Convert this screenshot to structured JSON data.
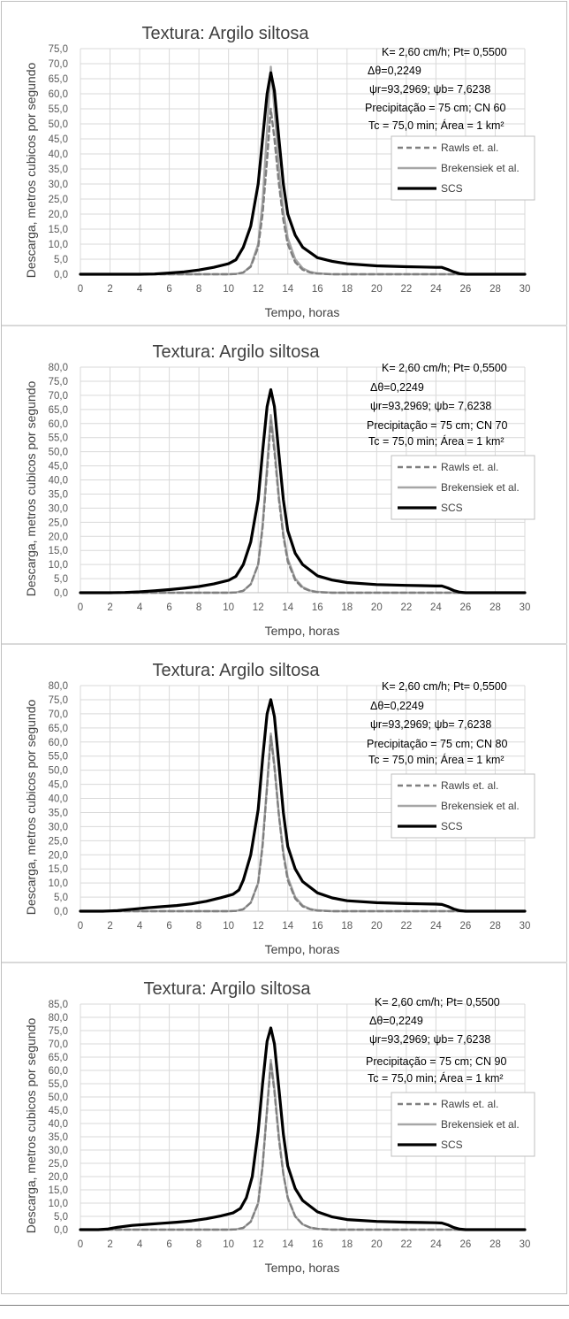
{
  "chart_data": [
    {
      "type": "line",
      "title": "Textura: Argilo siltosa",
      "xlabel": "Tempo, horas",
      "ylabel": "Descarga, metros cubicos por segundo",
      "xlim": [
        0,
        30
      ],
      "ylim": [
        0,
        75
      ],
      "x_ticks": [
        "0",
        "2",
        "4",
        "6",
        "8",
        "10",
        "12",
        "14",
        "16",
        "18",
        "20",
        "22",
        "24",
        "26",
        "28",
        "30"
      ],
      "y_ticks": [
        "0,0",
        "5,0",
        "10,0",
        "15,0",
        "20,0",
        "25,0",
        "30,0",
        "35,0",
        "40,0",
        "45,0",
        "50,0",
        "55,0",
        "60,0",
        "65,0",
        "70,0",
        "75,0"
      ],
      "grid": true,
      "legend_position": "right",
      "annotations": [
        "K= 2,60 cm/h; Pt= 0,5500",
        "Δθ=0,2249",
        "ψr=93,2969; ψb= 7,6238",
        "Precipitação = 75 cm; CN 60",
        "Tc = 75,0 min; Área = 1 km²"
      ],
      "series": [
        {
          "name": "Rawls et. al.",
          "color": "#7f7f7f",
          "dash": "dashed",
          "x": [
            0,
            8,
            10,
            10.5,
            11,
            11.5,
            12,
            12.3,
            12.6,
            12.85,
            13.1,
            13.4,
            13.7,
            14,
            14.5,
            15,
            15.5,
            16,
            17,
            20,
            24,
            26,
            30
          ],
          "values": [
            0,
            0,
            0,
            0.1,
            0.6,
            2.5,
            9,
            20,
            38,
            55,
            45,
            30,
            18,
            10,
            4,
            1.5,
            0.6,
            0.2,
            0,
            0,
            0,
            0,
            0
          ]
        },
        {
          "name": "Brekensiek et al.",
          "color": "#a6a6a6",
          "dash": "solid",
          "x": [
            0,
            8,
            10,
            10.5,
            11,
            11.5,
            12,
            12.3,
            12.6,
            12.85,
            13.1,
            13.4,
            13.7,
            14,
            14.5,
            15,
            15.5,
            16,
            17,
            20,
            24,
            26,
            30
          ],
          "values": [
            0,
            0,
            0,
            0.1,
            0.6,
            2.7,
            10,
            24,
            48,
            69,
            55,
            35,
            21,
            12,
            5,
            2,
            0.8,
            0.3,
            0,
            0,
            0,
            0,
            0
          ]
        },
        {
          "name": "SCS",
          "color": "#000000",
          "dash": "solid",
          "x": [
            0,
            2,
            4,
            5,
            6,
            7,
            8,
            9,
            10,
            10.5,
            11,
            11.5,
            12,
            12.3,
            12.6,
            12.85,
            13.1,
            13.4,
            13.7,
            14,
            14.5,
            15,
            16,
            17,
            18,
            20,
            22,
            23,
            24,
            24.4,
            24.8,
            25.2,
            25.6,
            26,
            27,
            30
          ],
          "values": [
            0,
            0,
            0,
            0.1,
            0.4,
            0.8,
            1.4,
            2.3,
            3.5,
            4.8,
            9,
            16,
            30,
            45,
            60,
            67,
            61,
            45,
            30,
            20,
            13,
            9,
            5.5,
            4.3,
            3.5,
            2.8,
            2.5,
            2.4,
            2.3,
            2.3,
            1.6,
            0.8,
            0.2,
            0,
            0,
            0
          ]
        }
      ]
    },
    {
      "type": "line",
      "title": "Textura: Argilo siltosa",
      "xlabel": "Tempo, horas",
      "ylabel": "Descarga, metros cubicos por segundo",
      "xlim": [
        0,
        30
      ],
      "ylim": [
        0,
        80
      ],
      "x_ticks": [
        "0",
        "2",
        "4",
        "6",
        "8",
        "10",
        "12",
        "14",
        "16",
        "18",
        "20",
        "22",
        "24",
        "26",
        "28",
        "30"
      ],
      "y_ticks": [
        "0,0",
        "5,0",
        "10,0",
        "15,0",
        "20,0",
        "25,0",
        "30,0",
        "35,0",
        "40,0",
        "45,0",
        "50,0",
        "55,0",
        "60,0",
        "65,0",
        "70,0",
        "75,0",
        "80,0"
      ],
      "grid": true,
      "legend_position": "right",
      "annotations": [
        "K= 2,60 cm/h; Pt= 0,5500",
        "Δθ=0,2249",
        "ψr=93,2969;  ψb= 7,6238",
        "Precipitação = 75 cm; CN 70",
        "Tc = 75,0 min; Área = 1 km²"
      ],
      "series": [
        {
          "name": "Rawls et. al.",
          "color": "#7f7f7f",
          "dash": "dashed",
          "x": [
            0,
            8,
            10,
            10.5,
            11,
            11.5,
            12,
            12.3,
            12.6,
            12.85,
            13.1,
            13.4,
            13.7,
            14,
            14.5,
            15,
            15.5,
            16,
            17,
            20,
            24,
            26,
            30
          ],
          "values": [
            0,
            0,
            0,
            0.1,
            0.7,
            3,
            10,
            23,
            43,
            61,
            50,
            33,
            20,
            11,
            4.5,
            1.7,
            0.7,
            0.2,
            0,
            0,
            0,
            0,
            0
          ]
        },
        {
          "name": "Brekensiek et al.",
          "color": "#a6a6a6",
          "dash": "solid",
          "x": [
            0,
            8,
            10,
            10.5,
            11,
            11.5,
            12,
            12.3,
            12.6,
            12.85,
            13.1,
            13.4,
            13.7,
            14,
            14.5,
            15,
            15.5,
            16,
            17,
            20,
            24,
            26,
            30
          ],
          "values": [
            0,
            0,
            0,
            0.1,
            0.7,
            3,
            10,
            24,
            45,
            63,
            52,
            34,
            21,
            12,
            5,
            2,
            0.8,
            0.3,
            0,
            0,
            0,
            0,
            0
          ]
        },
        {
          "name": "SCS",
          "color": "#000000",
          "dash": "solid",
          "x": [
            0,
            2,
            3,
            4,
            5,
            6,
            7,
            8,
            9,
            10,
            10.5,
            11,
            11.5,
            12,
            12.3,
            12.6,
            12.85,
            13.1,
            13.4,
            13.7,
            14,
            14.5,
            15,
            16,
            17,
            18,
            20,
            22,
            23,
            24,
            24.4,
            24.8,
            25.2,
            25.6,
            26,
            27,
            30
          ],
          "values": [
            0,
            0,
            0.1,
            0.3,
            0.7,
            1.1,
            1.6,
            2.2,
            3.1,
            4.4,
            5.8,
            10,
            18,
            33,
            50,
            66,
            72,
            66,
            49,
            33,
            22,
            14,
            10,
            6,
            4.5,
            3.6,
            2.9,
            2.6,
            2.5,
            2.4,
            2.4,
            1.7,
            0.8,
            0.2,
            0,
            0,
            0
          ]
        }
      ]
    },
    {
      "type": "line",
      "title": "Textura: Argilo siltosa",
      "xlabel": "Tempo, horas",
      "ylabel": "Descarga, metros cubicos por segundo",
      "xlim": [
        0,
        30
      ],
      "ylim": [
        0,
        80
      ],
      "x_ticks": [
        "0",
        "2",
        "4",
        "6",
        "8",
        "10",
        "12",
        "14",
        "16",
        "18",
        "20",
        "22",
        "24",
        "26",
        "28",
        "30"
      ],
      "y_ticks": [
        "0,0",
        "5,0",
        "10,0",
        "15,0",
        "20,0",
        "25,0",
        "30,0",
        "35,0",
        "40,0",
        "45,0",
        "50,0",
        "55,0",
        "60,0",
        "65,0",
        "70,0",
        "75,0",
        "80,0"
      ],
      "grid": true,
      "legend_position": "right",
      "annotations": [
        "K= 2,60 cm/h; Pt= 0,5500",
        "Δθ=0,2249",
        "ψr=93,2969;  ψb= 7,6238",
        "Precipitação = 75 cm; CN 80",
        "Tc = 75,0 min; Área = 1 km²"
      ],
      "series": [
        {
          "name": "Rawls et. al.",
          "color": "#7f7f7f",
          "dash": "dashed",
          "x": [
            0,
            8,
            10,
            10.5,
            11,
            11.5,
            12,
            12.3,
            12.6,
            12.85,
            13.1,
            13.4,
            13.7,
            14,
            14.5,
            15,
            15.5,
            16,
            17,
            20,
            24,
            26,
            30
          ],
          "values": [
            0,
            0,
            0,
            0.1,
            0.7,
            3,
            10,
            23,
            44,
            62,
            51,
            34,
            20,
            11,
            4.5,
            1.7,
            0.7,
            0.2,
            0,
            0,
            0,
            0,
            0
          ]
        },
        {
          "name": "Brekensiek et al.",
          "color": "#a6a6a6",
          "dash": "solid",
          "x": [
            0,
            8,
            10,
            10.5,
            11,
            11.5,
            12,
            12.3,
            12.6,
            12.85,
            13.1,
            13.4,
            13.7,
            14,
            14.5,
            15,
            15.5,
            16,
            17,
            20,
            24,
            26,
            30
          ],
          "values": [
            0,
            0,
            0,
            0.1,
            0.7,
            3,
            10,
            24,
            45,
            63,
            52,
            34,
            21,
            12,
            5,
            2,
            0.8,
            0.3,
            0,
            0,
            0,
            0,
            0
          ]
        },
        {
          "name": "SCS",
          "color": "#000000",
          "dash": "solid",
          "x": [
            0,
            1.5,
            2.5,
            3.5,
            4.5,
            5.5,
            6.5,
            7.5,
            8.5,
            9.5,
            10.3,
            10.7,
            11,
            11.5,
            12,
            12.3,
            12.6,
            12.85,
            13.1,
            13.4,
            13.7,
            14,
            14.5,
            15,
            16,
            17,
            18,
            20,
            22,
            23,
            24,
            24.4,
            24.8,
            25.2,
            25.6,
            26,
            27,
            30
          ],
          "values": [
            0,
            0,
            0.2,
            0.7,
            1.2,
            1.6,
            2,
            2.6,
            3.5,
            4.8,
            6,
            7.5,
            11,
            20,
            36,
            54,
            70,
            75,
            69,
            52,
            35,
            23,
            15,
            10.5,
            6.5,
            4.7,
            3.7,
            3,
            2.7,
            2.6,
            2.5,
            2.4,
            1.7,
            0.8,
            0.2,
            0,
            0,
            0
          ]
        }
      ]
    },
    {
      "type": "line",
      "title": "Textura: Argilo siltosa",
      "xlabel": "Tempo, horas",
      "ylabel": "Descarga, metros cubicos por segundo",
      "xlim": [
        0,
        30
      ],
      "ylim": [
        0,
        85
      ],
      "x_ticks": [
        "0",
        "2",
        "4",
        "6",
        "8",
        "10",
        "12",
        "14",
        "16",
        "18",
        "20",
        "22",
        "24",
        "26",
        "28",
        "30"
      ],
      "y_ticks": [
        "0,0",
        "5,0",
        "10,0",
        "15,0",
        "20,0",
        "25,0",
        "30,0",
        "35,0",
        "40,0",
        "45,0",
        "50,0",
        "55,0",
        "60,0",
        "65,0",
        "70,0",
        "75,0",
        "80,0",
        "85,0"
      ],
      "grid": true,
      "legend_position": "right",
      "annotations": [
        "K= 2,60 cm/h; Pt= 0,5500",
        "Δθ=0,2249",
        "ψr=93,2969;  ψb= 7,6238",
        "Precipitação = 75 cm; CN 90",
        "Tc = 75,0 min; Área = 1 km²"
      ],
      "series": [
        {
          "name": "Rawls et. al.",
          "color": "#7f7f7f",
          "dash": "dashed",
          "x": [
            0,
            8,
            10,
            10.5,
            11,
            11.5,
            12,
            12.3,
            12.6,
            12.85,
            13.1,
            13.4,
            13.7,
            14,
            14.5,
            15,
            15.5,
            16,
            17,
            20,
            24,
            26,
            30
          ],
          "values": [
            0,
            0,
            0,
            0.1,
            0.7,
            3,
            10,
            24,
            45,
            63,
            52,
            34,
            21,
            12,
            5,
            2,
            0.8,
            0.3,
            0,
            0,
            0,
            0,
            0
          ]
        },
        {
          "name": "Brekensiek et al.",
          "color": "#a6a6a6",
          "dash": "solid",
          "x": [
            0,
            8,
            10,
            10.5,
            11,
            11.5,
            12,
            12.3,
            12.6,
            12.85,
            13.1,
            13.4,
            13.7,
            14,
            14.5,
            15,
            15.5,
            16,
            17,
            20,
            24,
            26,
            30
          ],
          "values": [
            0,
            0,
            0,
            0.1,
            0.7,
            3,
            10,
            24,
            46,
            64,
            53,
            35,
            21,
            12,
            5,
            2,
            0.8,
            0.3,
            0,
            0,
            0,
            0,
            0
          ]
        },
        {
          "name": "SCS",
          "color": "#000000",
          "dash": "solid",
          "x": [
            0,
            1.2,
            1.8,
            2.5,
            3.5,
            4.5,
            5.5,
            6.5,
            7.5,
            8.5,
            9.5,
            10.3,
            10.8,
            11.2,
            11.6,
            12,
            12.3,
            12.6,
            12.85,
            13.1,
            13.4,
            13.7,
            14,
            14.5,
            15,
            16,
            17,
            18,
            20,
            22,
            23,
            24,
            24.4,
            24.8,
            25.2,
            25.6,
            26,
            27,
            30
          ],
          "values": [
            0,
            0,
            0.2,
            0.9,
            1.6,
            2,
            2.4,
            2.8,
            3.3,
            4.1,
            5.2,
            6.3,
            8,
            12,
            20,
            37,
            55,
            71,
            76,
            70,
            53,
            36,
            24,
            15.5,
            11,
            6.7,
            4.8,
            3.8,
            3.1,
            2.8,
            2.7,
            2.6,
            2.5,
            1.8,
            0.8,
            0.2,
            0,
            0,
            0
          ]
        }
      ]
    }
  ]
}
